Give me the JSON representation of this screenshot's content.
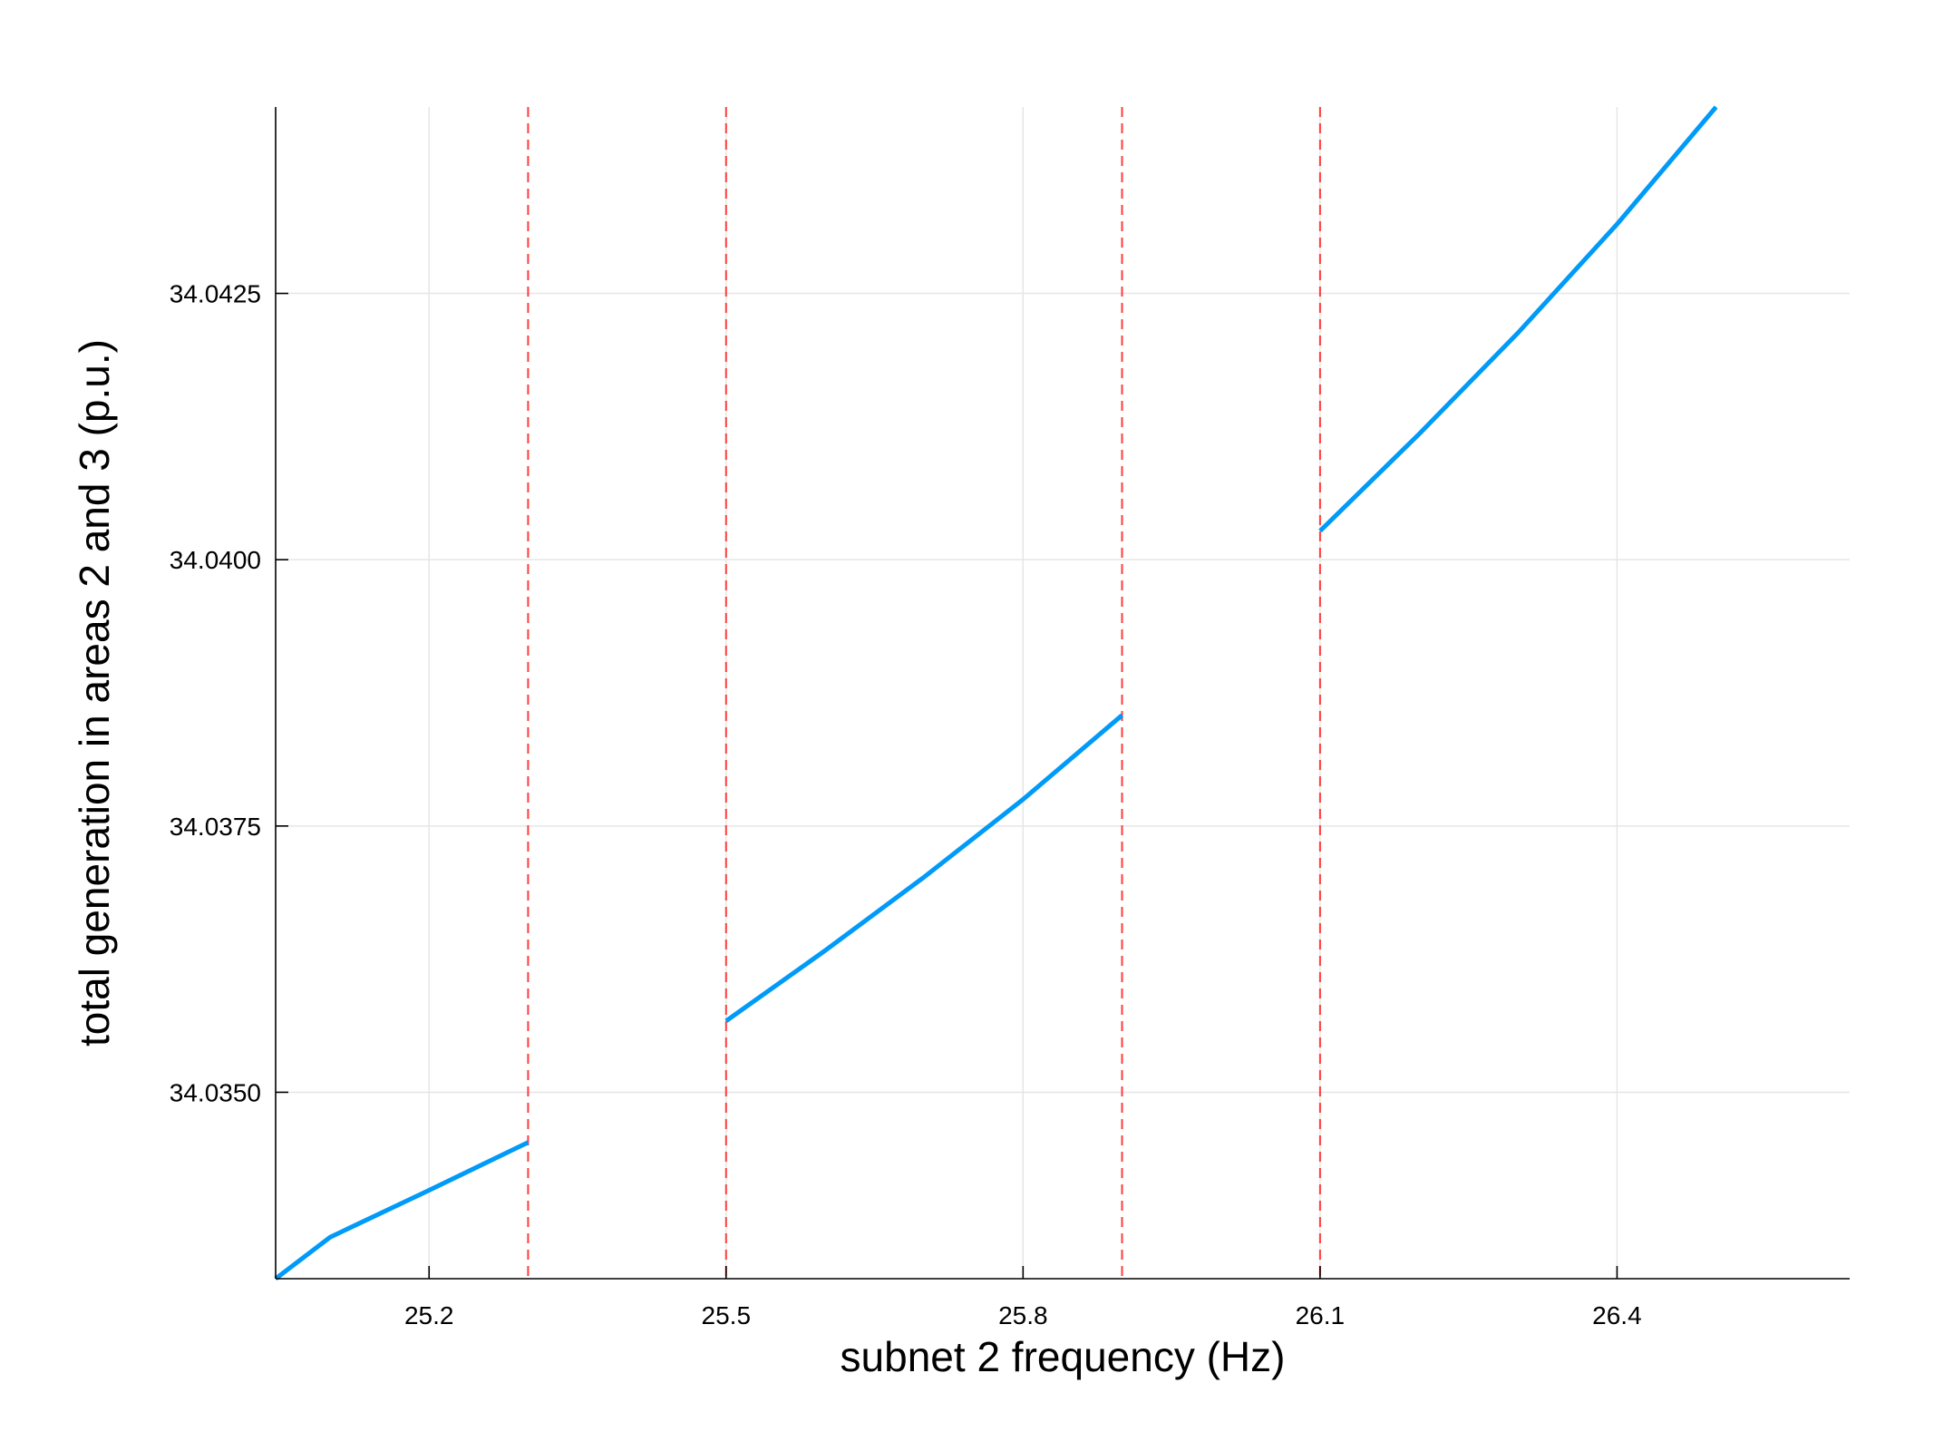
{
  "chart_data": {
    "type": "line",
    "title": "",
    "xlabel": "subnet 2 frequency (Hz)",
    "ylabel": "total generation in areas 2 and 3 (p.u.)",
    "xlim": [
      25.045,
      26.635
    ],
    "ylim": [
      34.03325,
      34.04425
    ],
    "x_ticks": [
      "25.2",
      "25.5",
      "25.8",
      "26.1",
      "26.4"
    ],
    "x_tick_values": [
      25.2,
      25.5,
      25.8,
      26.1,
      26.4
    ],
    "y_ticks": [
      "34.0350",
      "34.0375",
      "34.0400",
      "34.0425"
    ],
    "y_tick_values": [
      34.035,
      34.0375,
      34.04,
      34.0425
    ],
    "grid": true,
    "legend": "none",
    "series": [
      {
        "color": "#009af9",
        "segments": [
          {
            "x": [
              25.045,
              25.1,
              25.2,
              25.3
            ],
            "y": [
              34.03325,
              34.03364,
              34.03408,
              34.03453
            ]
          },
          {
            "x": [
              25.5,
              25.6,
              25.7,
              25.8,
              25.9
            ],
            "y": [
              34.03567,
              34.03633,
              34.03702,
              34.03775,
              34.03854
            ]
          },
          {
            "x": [
              26.1,
              26.2,
              26.3,
              26.4,
              26.5
            ],
            "y": [
              34.04027,
              34.04118,
              34.04213,
              34.04315,
              34.04425
            ]
          }
        ]
      }
    ],
    "vlines": {
      "color": "#ff3b3b",
      "style": "dashed",
      "x": [
        25.3,
        25.5,
        25.9,
        26.1
      ]
    }
  }
}
